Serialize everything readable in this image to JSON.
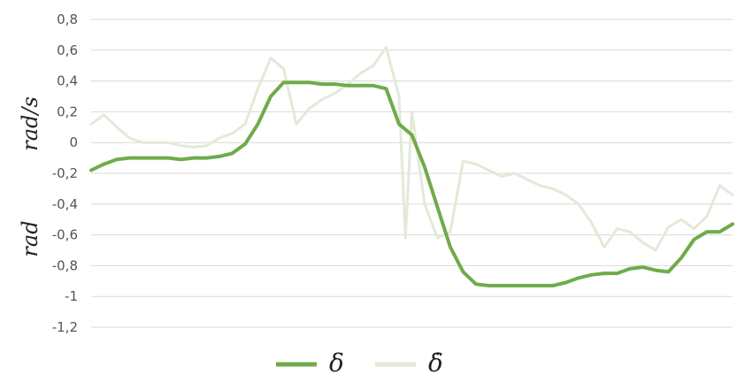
{
  "chart_data": {
    "type": "line",
    "title": "",
    "xlabel": "",
    "ylabel_parts": [
      "rad",
      "rad/s"
    ],
    "ylim": [
      -1.2,
      0.8
    ],
    "ytick_labels": [
      "0,8",
      "0,6",
      "0,4",
      "0,2",
      "0",
      "-0,2",
      "-0,4",
      "-0,6",
      "-0,8",
      "-1",
      "-1,2"
    ],
    "ytick_values": [
      0.8,
      0.6,
      0.4,
      0.2,
      0,
      -0.2,
      -0.4,
      -0.6,
      -0.8,
      -1,
      -1.2
    ],
    "grid": "horizontal",
    "legend_position": "bottom-center",
    "series": [
      {
        "name": "δ",
        "color": "#6fab4a",
        "x": [
          0,
          2,
          4,
          6,
          8,
          10,
          12,
          14,
          16,
          18,
          20,
          22,
          24,
          26,
          28,
          30,
          32,
          34,
          36,
          38,
          40,
          42,
          44,
          46,
          48,
          50,
          52,
          54,
          56,
          58,
          60,
          62,
          64,
          66,
          68,
          70,
          72,
          74,
          76,
          78,
          80,
          82,
          84,
          86,
          88,
          90,
          92,
          94,
          96,
          98,
          100
        ],
        "values": [
          -0.18,
          -0.14,
          -0.11,
          -0.1,
          -0.1,
          -0.1,
          -0.1,
          -0.11,
          -0.1,
          -0.1,
          -0.09,
          -0.07,
          -0.01,
          0.12,
          0.3,
          0.39,
          0.39,
          0.39,
          0.38,
          0.38,
          0.37,
          0.37,
          0.37,
          0.35,
          0.12,
          0.05,
          -0.16,
          -0.42,
          -0.68,
          -0.84,
          -0.92,
          -0.93,
          -0.93,
          -0.93,
          -0.93,
          -0.93,
          -0.93,
          -0.91,
          -0.88,
          -0.86,
          -0.85,
          -0.85,
          -0.82,
          -0.81,
          -0.83,
          -0.84,
          -0.75,
          -0.63,
          -0.58,
          -0.58,
          -0.53
        ]
      },
      {
        "name": "δ̇",
        "color": "#e2ead8",
        "x": [
          0,
          2,
          4,
          6,
          8,
          10,
          12,
          14,
          16,
          18,
          20,
          22,
          24,
          26,
          28,
          30,
          32,
          34,
          36,
          38,
          40,
          42,
          44,
          46,
          48,
          49,
          50,
          52,
          54,
          56,
          58,
          60,
          62,
          64,
          66,
          68,
          70,
          72,
          74,
          76,
          78,
          80,
          82,
          84,
          86,
          88,
          90,
          92,
          94,
          96,
          98,
          100
        ],
        "values": [
          0.12,
          0.18,
          0.1,
          0.03,
          0.0,
          0.0,
          0.0,
          -0.02,
          -0.03,
          -0.02,
          0.03,
          0.06,
          0.12,
          0.35,
          0.55,
          0.48,
          0.12,
          0.22,
          0.28,
          0.32,
          0.38,
          0.45,
          0.5,
          0.62,
          0.3,
          -0.62,
          0.2,
          -0.4,
          -0.62,
          -0.58,
          -0.12,
          -0.14,
          -0.18,
          -0.22,
          -0.2,
          -0.24,
          -0.28,
          -0.3,
          -0.34,
          -0.4,
          -0.52,
          -0.68,
          -0.56,
          -0.58,
          -0.65,
          -0.7,
          -0.55,
          -0.5,
          -0.56,
          -0.48,
          -0.28,
          -0.34
        ]
      }
    ]
  }
}
